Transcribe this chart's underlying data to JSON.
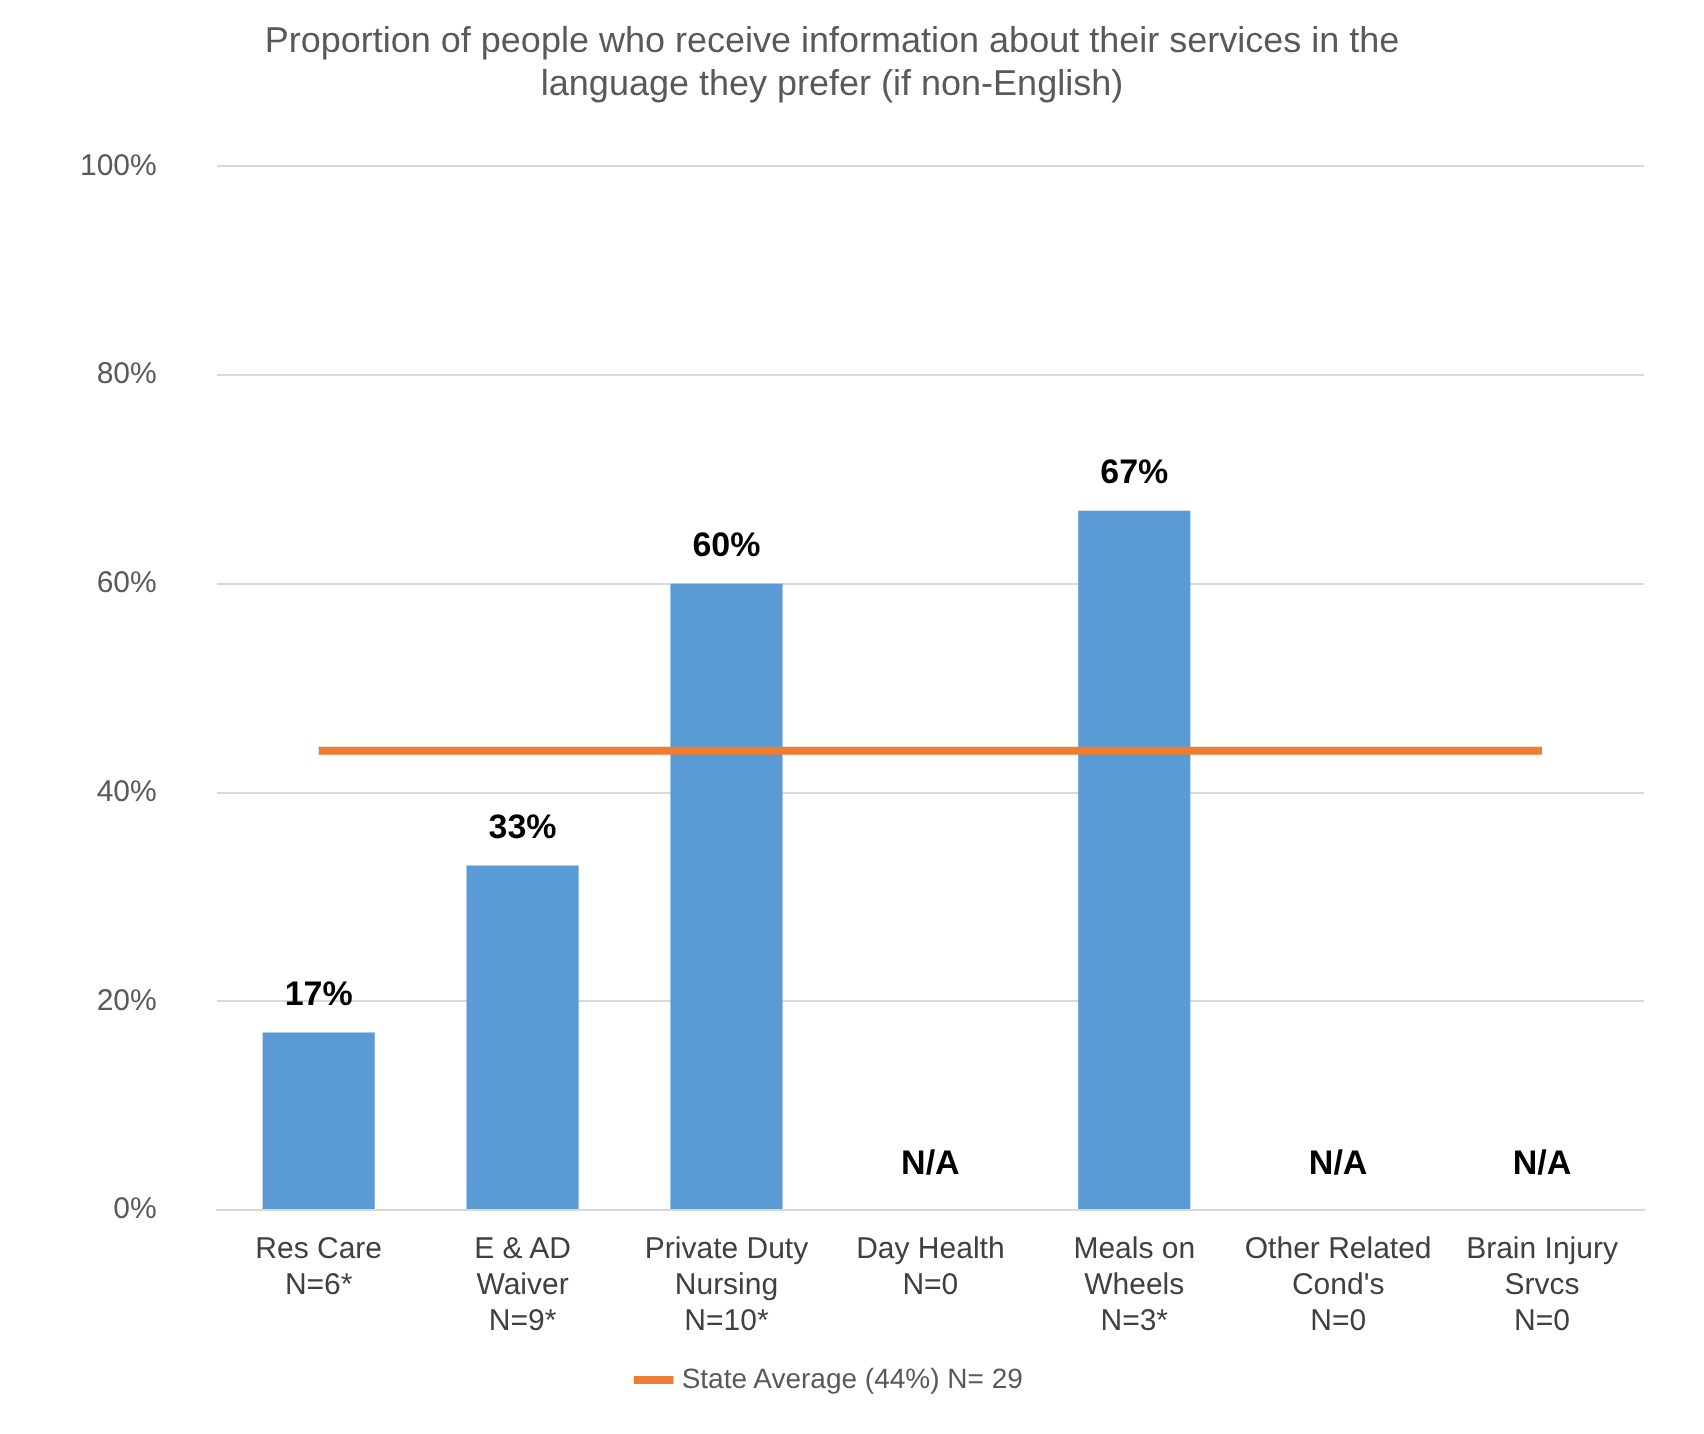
{
  "chart_data": {
    "type": "bar",
    "title": "Proportion of people who receive information about their services in the language they prefer (if non-English)",
    "categories": [
      "Res Care\nN=6*",
      "E & AD\nWaiver\nN=9*",
      "Private Duty\nNursing\nN=10*",
      "Day Health\nN=0",
      "Meals on\nWheels\nN=3*",
      "Other Related\nCond's\nN=0",
      "Brain Injury\nSrvcs\nN=0"
    ],
    "series": [
      {
        "color": "#5b9bd5",
        "values": [
          17,
          33,
          60,
          null,
          67,
          null,
          null
        ],
        "value_labels": [
          "17%",
          "33%",
          "60%",
          "N/A",
          "67%",
          "N/A",
          "N/A"
        ]
      },
      {
        "type": "line",
        "name": "State Average (44%) N= 29",
        "color": "#ed7d31",
        "values": [
          44,
          44,
          44,
          44,
          44,
          44,
          44
        ]
      }
    ],
    "ylim": [
      0,
      100
    ],
    "yticks": [
      {
        "value": 0,
        "label": "0%"
      },
      {
        "value": 20,
        "label": "20%"
      },
      {
        "value": 40,
        "label": "40%"
      },
      {
        "value": 60,
        "label": "60%"
      },
      {
        "value": 80,
        "label": "80%"
      },
      {
        "value": 100,
        "label": "100%"
      }
    ],
    "grid": "y",
    "legend": "bottom",
    "marker": "none"
  }
}
